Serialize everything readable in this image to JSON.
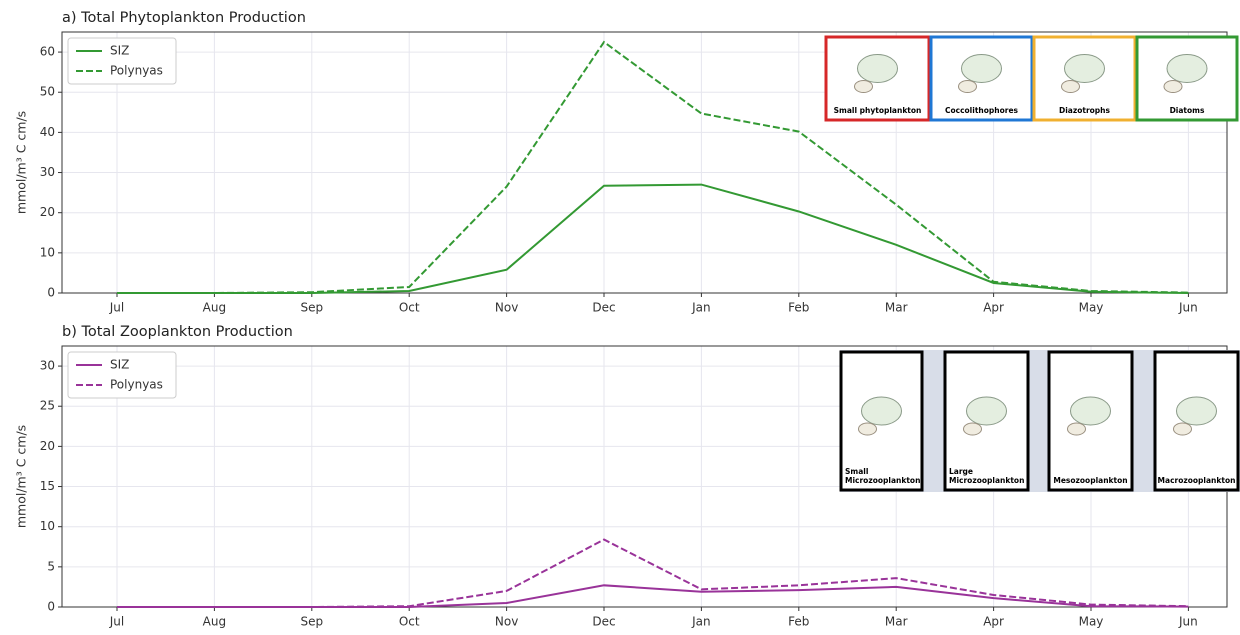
{
  "chart_data": [
    {
      "type": "line",
      "title": "a) Total Phytoplankton Production",
      "ylabel": "mmol/m³ C cm/s",
      "categories": [
        "Jul",
        "Aug",
        "Sep",
        "Oct",
        "Nov",
        "Dec",
        "Jan",
        "Feb",
        "Mar",
        "Apr",
        "May",
        "Jun"
      ],
      "series": [
        {
          "name": "SIZ",
          "color": "#339933",
          "linestyle": "solid",
          "values": [
            0,
            0,
            0,
            0.5,
            5.8,
            26.7,
            27,
            20.3,
            12,
            2.5,
            0.3,
            0
          ]
        },
        {
          "name": "Polynyas",
          "color": "#339933",
          "linestyle": "dashed",
          "values": [
            0,
            0,
            0.2,
            1.5,
            26.5,
            62.5,
            44.7,
            40.2,
            22,
            2.8,
            0.5,
            0.1
          ]
        }
      ],
      "ylim": [
        0,
        65
      ],
      "yticks": [
        0,
        10,
        20,
        30,
        40,
        50,
        60
      ],
      "grid": true,
      "legend": "upper left",
      "inset_labels": [
        [
          "Small phytoplankton"
        ],
        [
          "Coccolithophores"
        ],
        [
          "Diazotrophs"
        ],
        [
          "Diatoms"
        ]
      ]
    },
    {
      "type": "line",
      "title": "b) Total Zooplankton Production",
      "ylabel": "mmol/m³ C cm/s",
      "categories": [
        "Jul",
        "Aug",
        "Sep",
        "Oct",
        "Nov",
        "Dec",
        "Jan",
        "Feb",
        "Mar",
        "Apr",
        "May",
        "Jun"
      ],
      "series": [
        {
          "name": "SIZ",
          "color": "#993399",
          "linestyle": "solid",
          "values": [
            0,
            0,
            0,
            0,
            0.5,
            2.7,
            1.9,
            2.1,
            2.5,
            1.1,
            0.1,
            0.05
          ]
        },
        {
          "name": "Polynyas",
          "color": "#993399",
          "linestyle": "dashed",
          "values": [
            0,
            0,
            0,
            0.1,
            2,
            8.4,
            2.2,
            2.7,
            3.6,
            1.5,
            0.3,
            0.1
          ]
        }
      ],
      "ylim": [
        0,
        32.5
      ],
      "yticks": [
        0,
        5,
        10,
        15,
        20,
        25,
        30
      ],
      "grid": true,
      "legend": "upper left",
      "inset_labels": [
        [
          "Small",
          "Microzooplankton"
        ],
        [
          "Large",
          "Microzooplankton"
        ],
        [
          "Mesozooplankton"
        ],
        [
          "Macrozooplankton"
        ]
      ]
    }
  ]
}
